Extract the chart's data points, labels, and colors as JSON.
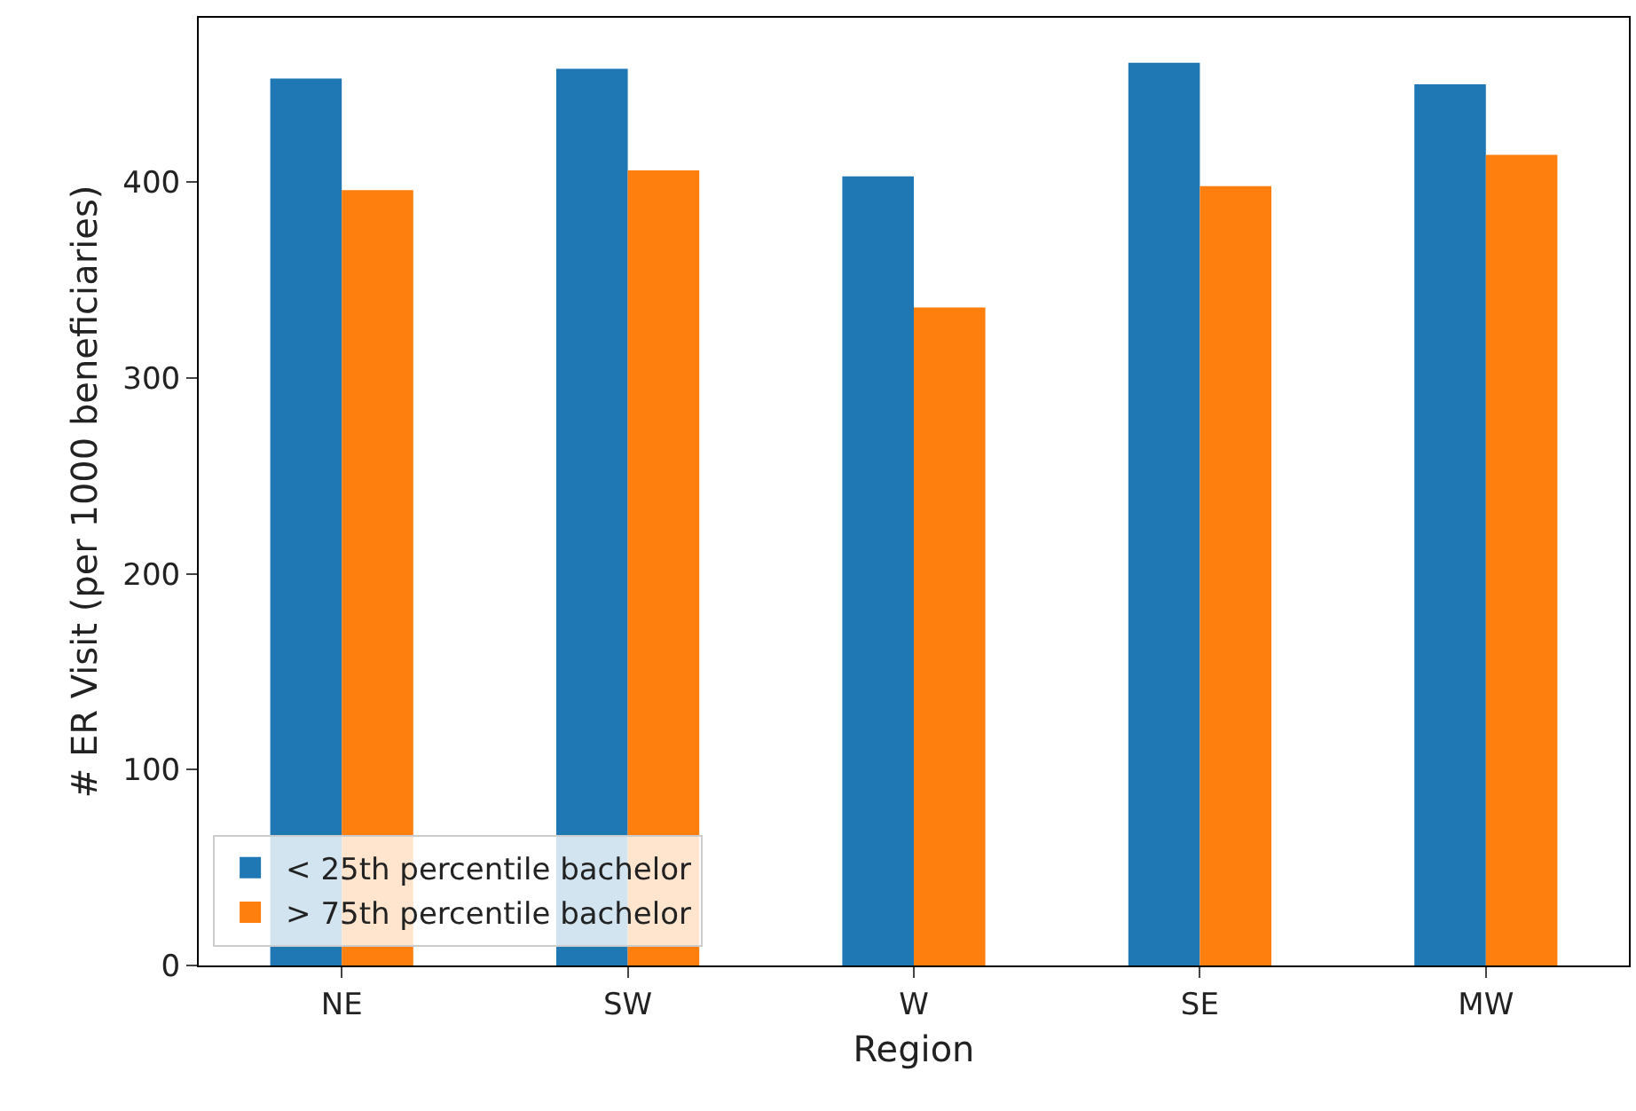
{
  "chart_data": {
    "type": "bar",
    "xlabel": "Region",
    "ylabel": "# ER Visit (per 1000 beneficiaries)",
    "categories": [
      "NE",
      "SW",
      "W",
      "SE",
      "MW"
    ],
    "series": [
      {
        "name": "< 25th percentile bachelor",
        "color": "#1f77b4",
        "values": [
          453,
          458,
          403,
          461,
          450
        ]
      },
      {
        "name": "> 75th percentile bachelor",
        "color": "#ff7f0e",
        "values": [
          396,
          406,
          336,
          398,
          414
        ]
      }
    ],
    "ylim": [
      0,
      484
    ],
    "yticks": [
      0,
      100,
      200,
      300,
      400
    ],
    "legend": "bottom left"
  }
}
